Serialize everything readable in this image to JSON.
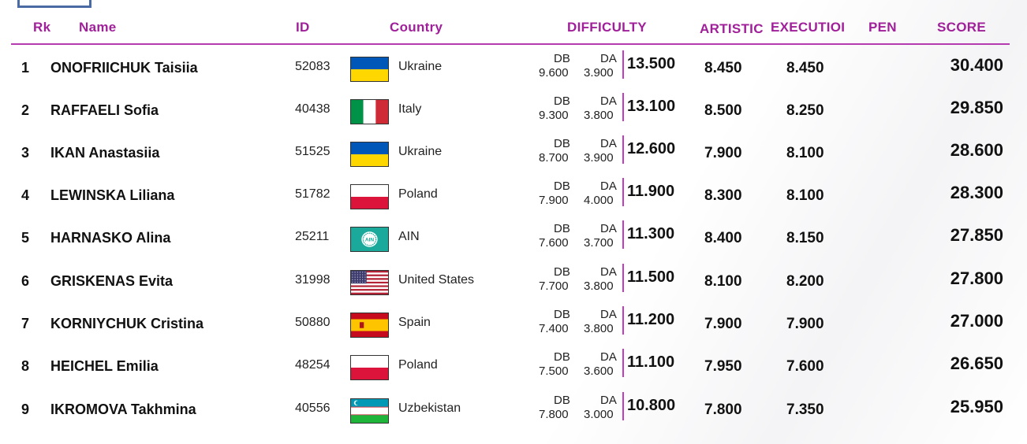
{
  "header": {
    "rank": "Rk",
    "name": "Name",
    "id": "ID",
    "country": "Country",
    "difficulty": "DIFFICULTY",
    "artistic": "ARTISTIC",
    "execution": "EXECUTIOI",
    "penalty": "PEN",
    "score": "SCORE"
  },
  "rows": [
    {
      "rank": "1",
      "name": "ONOFRIICHUK Taisiia",
      "id": "52083",
      "flag": "ukraine-flag-icon",
      "country": "Ukraine",
      "db_label": "DB",
      "da_label": "DA",
      "db": "9.600",
      "da": "3.900",
      "difficulty": "13.500",
      "artistic": "8.450",
      "execution": "8.450",
      "score": "30.400"
    },
    {
      "rank": "2",
      "name": "RAFFAELI Sofia",
      "id": "40438",
      "flag": "italy-flag-icon",
      "country": "Italy",
      "db_label": "DB",
      "da_label": "DA",
      "db": "9.300",
      "da": "3.800",
      "difficulty": "13.100",
      "artistic": "8.500",
      "execution": "8.250",
      "score": "29.850"
    },
    {
      "rank": "3",
      "name": "IKAN Anastasiia",
      "id": "51525",
      "flag": "ukraine-flag-icon",
      "country": "Ukraine",
      "db_label": "DB",
      "da_label": "DA",
      "db": "8.700",
      "da": "3.900",
      "difficulty": "12.600",
      "artistic": "7.900",
      "execution": "8.100",
      "score": "28.600"
    },
    {
      "rank": "4",
      "name": "LEWINSKA Liliana",
      "id": "51782",
      "flag": "poland-flag-icon",
      "country": "Poland",
      "db_label": "DB",
      "da_label": "DA",
      "db": "7.900",
      "da": "4.000",
      "difficulty": "11.900",
      "artistic": "8.300",
      "execution": "8.100",
      "score": "28.300"
    },
    {
      "rank": "5",
      "name": "HARNASKO Alina",
      "id": "25211",
      "flag": "ain-flag-icon",
      "country": "AIN",
      "db_label": "DB",
      "da_label": "DA",
      "db": "7.600",
      "da": "3.700",
      "difficulty": "11.300",
      "artistic": "8.400",
      "execution": "8.150",
      "score": "27.850"
    },
    {
      "rank": "6",
      "name": "GRISKENAS Evita",
      "id": "31998",
      "flag": "usa-flag-icon",
      "country": "United States",
      "db_label": "DB",
      "da_label": "DA",
      "db": "7.700",
      "da": "3.800",
      "difficulty": "11.500",
      "artistic": "8.100",
      "execution": "8.200",
      "score": "27.800"
    },
    {
      "rank": "7",
      "name": "KORNIYCHUK Cristina",
      "id": "50880",
      "flag": "spain-flag-icon",
      "country": "Spain",
      "db_label": "DB",
      "da_label": "DA",
      "db": "7.400",
      "da": "3.800",
      "difficulty": "11.200",
      "artistic": "7.900",
      "execution": "7.900",
      "score": "27.000"
    },
    {
      "rank": "8",
      "name": "HEICHEL Emilia",
      "id": "48254",
      "flag": "poland-flag-icon",
      "country": "Poland",
      "db_label": "DB",
      "da_label": "DA",
      "db": "7.500",
      "da": "3.600",
      "difficulty": "11.100",
      "artistic": "7.950",
      "execution": "7.600",
      "score": "26.650"
    },
    {
      "rank": "9",
      "name": "IKROMOVA Takhmina",
      "id": "40556",
      "flag": "uzbekistan-flag-icon",
      "country": "Uzbekistan",
      "db_label": "DB",
      "da_label": "DA",
      "db": "7.800",
      "da": "3.000",
      "difficulty": "10.800",
      "artistic": "7.800",
      "execution": "7.350",
      "score": "25.950"
    }
  ],
  "colors": {
    "header_text": "#a0209a",
    "header_line": "#b23bb0",
    "difficulty_bar": "#c23bc0",
    "corner_box": "#4a6aa3"
  }
}
